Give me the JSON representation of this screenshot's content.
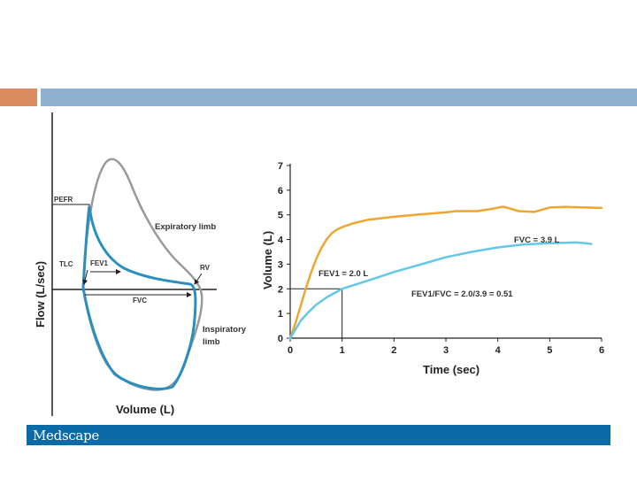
{
  "colors": {
    "accent_orange": "#dc8a5f",
    "accent_blue": "#8fb1cf",
    "loop_gray": "#9a9a9a",
    "loop_blue": "#2a8fc0",
    "curve_orange": "#eea62e",
    "curve_lightblue": "#63c7e8",
    "brand_bar": "#0b6aa8"
  },
  "brand": {
    "name": "Medscape"
  },
  "flow_volume_loop": {
    "y_axis_label": "Flow (L/sec)",
    "x_axis_label": "Volume (L)",
    "labels": {
      "pefr": "PEFR",
      "expiratory_limb": "Expiratory limb",
      "tlc": "TLC",
      "fev1": "FEV1",
      "rv": "RV",
      "fvc": "FVC",
      "inspiratory_limb": [
        "Inspiratory",
        "limb"
      ]
    }
  },
  "spirogram": {
    "y_axis_label": "Volume (L)",
    "x_axis_label": "Time (sec)",
    "fev1_label": "FEV1 = 2.0 L",
    "fvc_label": "FVC = 3.9 L",
    "ratio_label": "FEV1/FVC = 2.0/3.9 = 0.51"
  },
  "chart_data": {
    "type": "line",
    "xlabel": "Time (sec)",
    "ylabel": "Volume (L)",
    "xlim": [
      0,
      6
    ],
    "ylim": [
      0,
      7
    ],
    "x_ticks": [
      "0",
      "1",
      "2",
      "3",
      "4",
      "5",
      "6"
    ],
    "y_ticks": [
      "0",
      "1",
      "2",
      "3",
      "4",
      "5",
      "6",
      "7"
    ],
    "grid": false,
    "series": [
      {
        "color": "#eea62e",
        "x": [
          0,
          0.1,
          0.2,
          0.3,
          0.4,
          0.5,
          0.6,
          0.7,
          0.8,
          0.9,
          1.0,
          1.2,
          1.5,
          2.0,
          2.5,
          3.0,
          3.2,
          3.6,
          3.9,
          4.1,
          4.2,
          4.4,
          4.7,
          5.0,
          5.3,
          6.0
        ],
        "y": [
          0,
          0.6,
          1.3,
          2.0,
          2.65,
          3.2,
          3.65,
          4.0,
          4.25,
          4.4,
          4.5,
          4.65,
          4.8,
          4.92,
          5.02,
          5.1,
          5.15,
          5.15,
          5.25,
          5.33,
          5.28,
          5.15,
          5.12,
          5.3,
          5.32,
          5.28
        ]
      },
      {
        "color": "#63c7e8",
        "x": [
          0,
          0.1,
          0.2,
          0.35,
          0.5,
          0.7,
          0.9,
          1.0,
          1.3,
          1.6,
          2.0,
          2.5,
          3.0,
          3.5,
          4.0,
          4.5,
          5.0,
          5.5,
          5.7,
          5.8
        ],
        "y": [
          0,
          0.35,
          0.7,
          1.05,
          1.35,
          1.65,
          1.88,
          2.0,
          2.2,
          2.4,
          2.68,
          2.98,
          3.28,
          3.5,
          3.68,
          3.8,
          3.85,
          3.88,
          3.85,
          3.82
        ]
      }
    ],
    "annotations": [
      {
        "text": "FEV1 = 2.0 L",
        "x": 1,
        "y": 2.0
      },
      {
        "text": "FVC = 3.9 L",
        "y": 3.9
      },
      {
        "text": "FEV1/FVC = 2.0/3.9 = 0.51"
      }
    ]
  }
}
